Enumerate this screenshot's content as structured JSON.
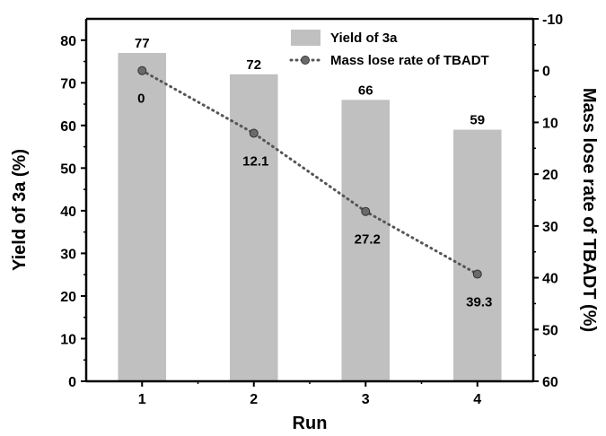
{
  "chart_data": {
    "type": "bar",
    "categories": [
      "1",
      "2",
      "3",
      "4"
    ],
    "xlabel": "Run",
    "ylabel": "Yield of 3a (%)",
    "y2label": "Mass lose rate of TBADT (%)",
    "ylim": [
      0,
      85
    ],
    "y2lim": [
      60,
      -10
    ],
    "y2_inverted": true,
    "yticks": [
      0,
      10,
      20,
      30,
      40,
      50,
      60,
      70,
      80
    ],
    "y2ticks": [
      60,
      50,
      40,
      30,
      20,
      10,
      0,
      -10
    ],
    "legend_position": "top-right",
    "series": [
      {
        "name": "Yield of 3a",
        "type": "bar",
        "axis": "left",
        "color": "#c0c0c0",
        "values": [
          77,
          72,
          66,
          59
        ],
        "labels": [
          "77",
          "72",
          "66",
          "59"
        ]
      },
      {
        "name": "Mass lose rate of TBADT",
        "type": "line",
        "axis": "right",
        "color": "#555555",
        "line_style": "dotted",
        "marker": "circle",
        "values": [
          0,
          12.1,
          27.2,
          39.3
        ],
        "labels": [
          "0",
          "12.1",
          "27.2",
          "39.3"
        ]
      }
    ]
  }
}
